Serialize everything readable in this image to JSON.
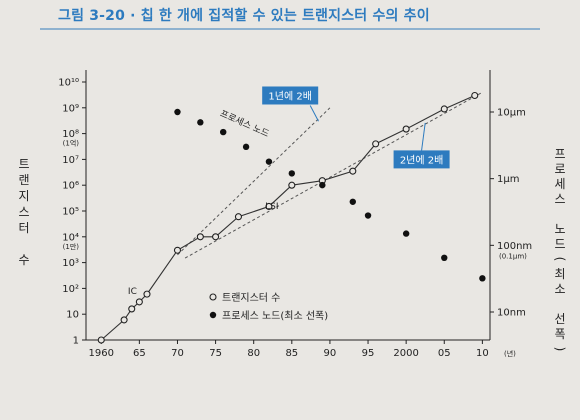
{
  "figure_caption": "그림 3-20 · 칩 한 개에 집적할 수 있는 트랜지스터 수의 추이",
  "chart_data": {
    "type": "scatter",
    "xlabel_unit": "(년)",
    "x_ticks": [
      {
        "value": 1960,
        "label": "1960"
      },
      {
        "value": 1965,
        "label": "65"
      },
      {
        "value": 1970,
        "label": "70"
      },
      {
        "value": 1975,
        "label": "75"
      },
      {
        "value": 1980,
        "label": "80"
      },
      {
        "value": 1985,
        "label": "85"
      },
      {
        "value": 1990,
        "label": "90"
      },
      {
        "value": 1995,
        "label": "95"
      },
      {
        "value": 2000,
        "label": "2000"
      },
      {
        "value": 2005,
        "label": "05"
      },
      {
        "value": 2010,
        "label": "10"
      }
    ],
    "xlim": [
      1958,
      2011
    ],
    "y_left": {
      "label": "트랜지스터 수",
      "scale": "log",
      "ylim": [
        1,
        10000000000
      ],
      "ticks": [
        {
          "value": 1,
          "label": "1"
        },
        {
          "value": 10,
          "label": "10"
        },
        {
          "value": 100,
          "label": "10²"
        },
        {
          "value": 1000,
          "label": "10³"
        },
        {
          "value": 10000,
          "label": "10⁴",
          "sub": "(1만)"
        },
        {
          "value": 100000,
          "label": "10⁵"
        },
        {
          "value": 1000000,
          "label": "10⁶"
        },
        {
          "value": 10000000,
          "label": "10⁷"
        },
        {
          "value": 100000000,
          "label": "10⁸",
          "sub": "(1억)"
        },
        {
          "value": 1000000000,
          "label": "10⁹"
        },
        {
          "value": 10000000000,
          "label": "10¹⁰"
        }
      ]
    },
    "y_right": {
      "label": "프로세스 노드(최소 선폭)",
      "scale": "log",
      "ticks": [
        {
          "value_um": 10,
          "label": "10μm"
        },
        {
          "value_um": 1,
          "label": "1μm"
        },
        {
          "value_um": 0.1,
          "label": "100nm",
          "sub": "(0.1μm)"
        },
        {
          "value_um": 0.01,
          "label": "10nm"
        }
      ]
    },
    "series": [
      {
        "name": "트랜지스터 수",
        "axis": "left",
        "marker": "open-circle",
        "points": [
          {
            "x": 1960,
            "y": 1
          },
          {
            "x": 1963,
            "y": 6
          },
          {
            "x": 1964,
            "y": 16
          },
          {
            "x": 1965,
            "y": 30
          },
          {
            "x": 1966,
            "y": 60
          },
          {
            "x": 1970,
            "y": 3000
          },
          {
            "x": 1973,
            "y": 10000
          },
          {
            "x": 1975,
            "y": 10000
          },
          {
            "x": 1978,
            "y": 60000
          },
          {
            "x": 1982,
            "y": 150000
          },
          {
            "x": 1985,
            "y": 1000000
          },
          {
            "x": 1989,
            "y": 1500000
          },
          {
            "x": 1993,
            "y": 3500000
          },
          {
            "x": 1996,
            "y": 40000000
          },
          {
            "x": 2000,
            "y": 150000000
          },
          {
            "x": 2005,
            "y": 900000000
          },
          {
            "x": 2009,
            "y": 3000000000
          }
        ]
      },
      {
        "name": "프로세스 노드(최소 선폭)",
        "axis": "right",
        "marker": "filled-circle",
        "points": [
          {
            "x": 1970,
            "y_um": 10
          },
          {
            "x": 1973,
            "y_um": 7
          },
          {
            "x": 1976,
            "y_um": 5
          },
          {
            "x": 1979,
            "y_um": 3
          },
          {
            "x": 1982,
            "y_um": 1.8
          },
          {
            "x": 1985,
            "y_um": 1.2
          },
          {
            "x": 1989,
            "y_um": 0.8
          },
          {
            "x": 1993,
            "y_um": 0.45
          },
          {
            "x": 1995,
            "y_um": 0.28
          },
          {
            "x": 2000,
            "y_um": 0.15
          },
          {
            "x": 2005,
            "y_um": 0.065
          },
          {
            "x": 2010,
            "y_um": 0.032
          }
        ]
      }
    ],
    "trend_lines": [
      {
        "points": [
          {
            "x": 1970,
            "y": 2000
          },
          {
            "x": 1990,
            "y": 1000000000
          }
        ]
      },
      {
        "points": [
          {
            "x": 1971,
            "y": 1500
          },
          {
            "x": 2010,
            "y": 4000000000
          }
        ]
      }
    ],
    "annotations": [
      {
        "text": "IC",
        "x": 1963.5,
        "y": 60
      },
      {
        "text": "LSI",
        "x": 1981.5,
        "y": 120000
      },
      {
        "text": "프로세스 노드",
        "x": 1975.5,
        "y": 500000000
      }
    ],
    "callouts": [
      {
        "text": "1년에 2배",
        "x": 1984,
        "y": 3000000000
      },
      {
        "text": "2년에 2배",
        "x": 2001.5,
        "y": 10000000
      }
    ],
    "legend": {
      "placement": "bottom-center",
      "entries": [
        {
          "marker": "open-circle",
          "label": "트랜지스터 수"
        },
        {
          "marker": "filled-circle",
          "label": "프로세스 노드(최소 선폭)"
        }
      ]
    }
  }
}
